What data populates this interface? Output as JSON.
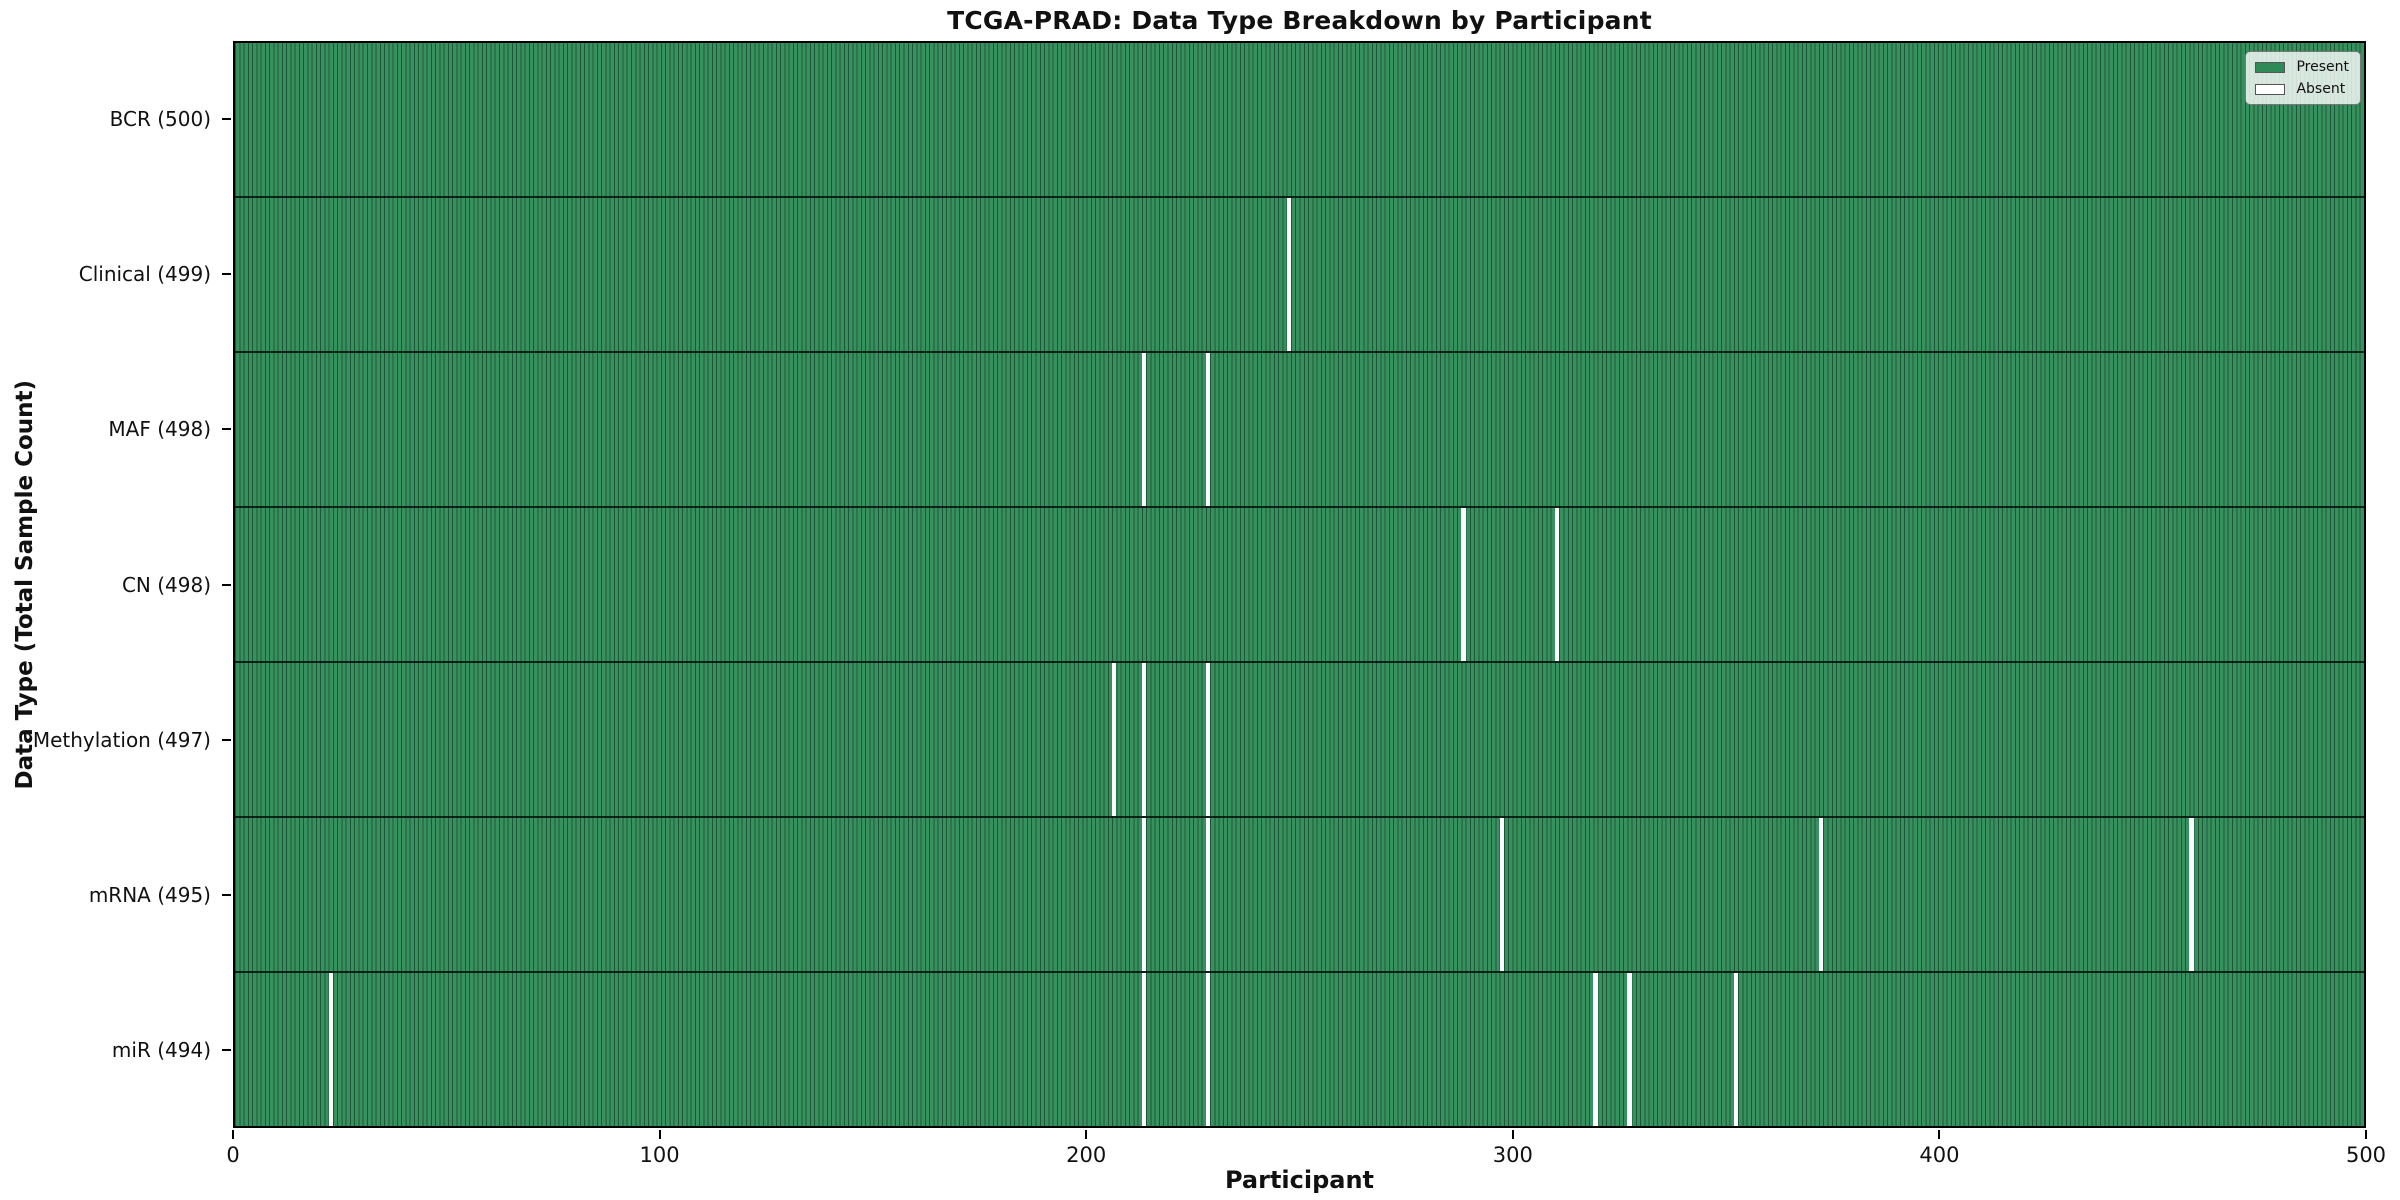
{
  "chart_data": {
    "type": "heatmap",
    "title": "TCGA-PRAD: Data Type Breakdown by Participant",
    "xlabel": "Participant",
    "ylabel": "Data Type (Total Sample Count)",
    "x_range": [
      0,
      500
    ],
    "x_ticks": [
      0,
      100,
      200,
      300,
      400,
      500
    ],
    "n_participants": 500,
    "grid": false,
    "legend_position": "upper right",
    "legend_entries": [
      {
        "label": "Present",
        "color": "#2e8b57"
      },
      {
        "label": "Absent",
        "color": "#ffffff"
      }
    ],
    "rows": [
      {
        "data_type": "BCR",
        "label": "BCR (500)",
        "total": 500,
        "absent_participants": []
      },
      {
        "data_type": "Clinical",
        "label": "Clinical (499)",
        "total": 499,
        "absent_participants": [
          247
        ]
      },
      {
        "data_type": "MAF",
        "label": "MAF (498)",
        "total": 498,
        "absent_participants": [
          213,
          228
        ]
      },
      {
        "data_type": "CN",
        "label": "CN (498)",
        "total": 498,
        "absent_participants": [
          288,
          310
        ]
      },
      {
        "data_type": "Methylation",
        "label": "Methylation (497)",
        "total": 497,
        "absent_participants": [
          206,
          213,
          228
        ]
      },
      {
        "data_type": "mRNA",
        "label": "mRNA (495)",
        "total": 495,
        "absent_participants": [
          213,
          228,
          297,
          372,
          459
        ]
      },
      {
        "data_type": "miR",
        "label": "miR (494)",
        "total": 494,
        "absent_participants": [
          22,
          213,
          228,
          319,
          327,
          352
        ]
      }
    ],
    "colors": {
      "present_fill": "#37915f",
      "cell_edge": "rgba(10,40,24,0.55)",
      "row_divider": "rgba(0,0,0,0.75)",
      "absent_fill": "#ffffff"
    }
  }
}
